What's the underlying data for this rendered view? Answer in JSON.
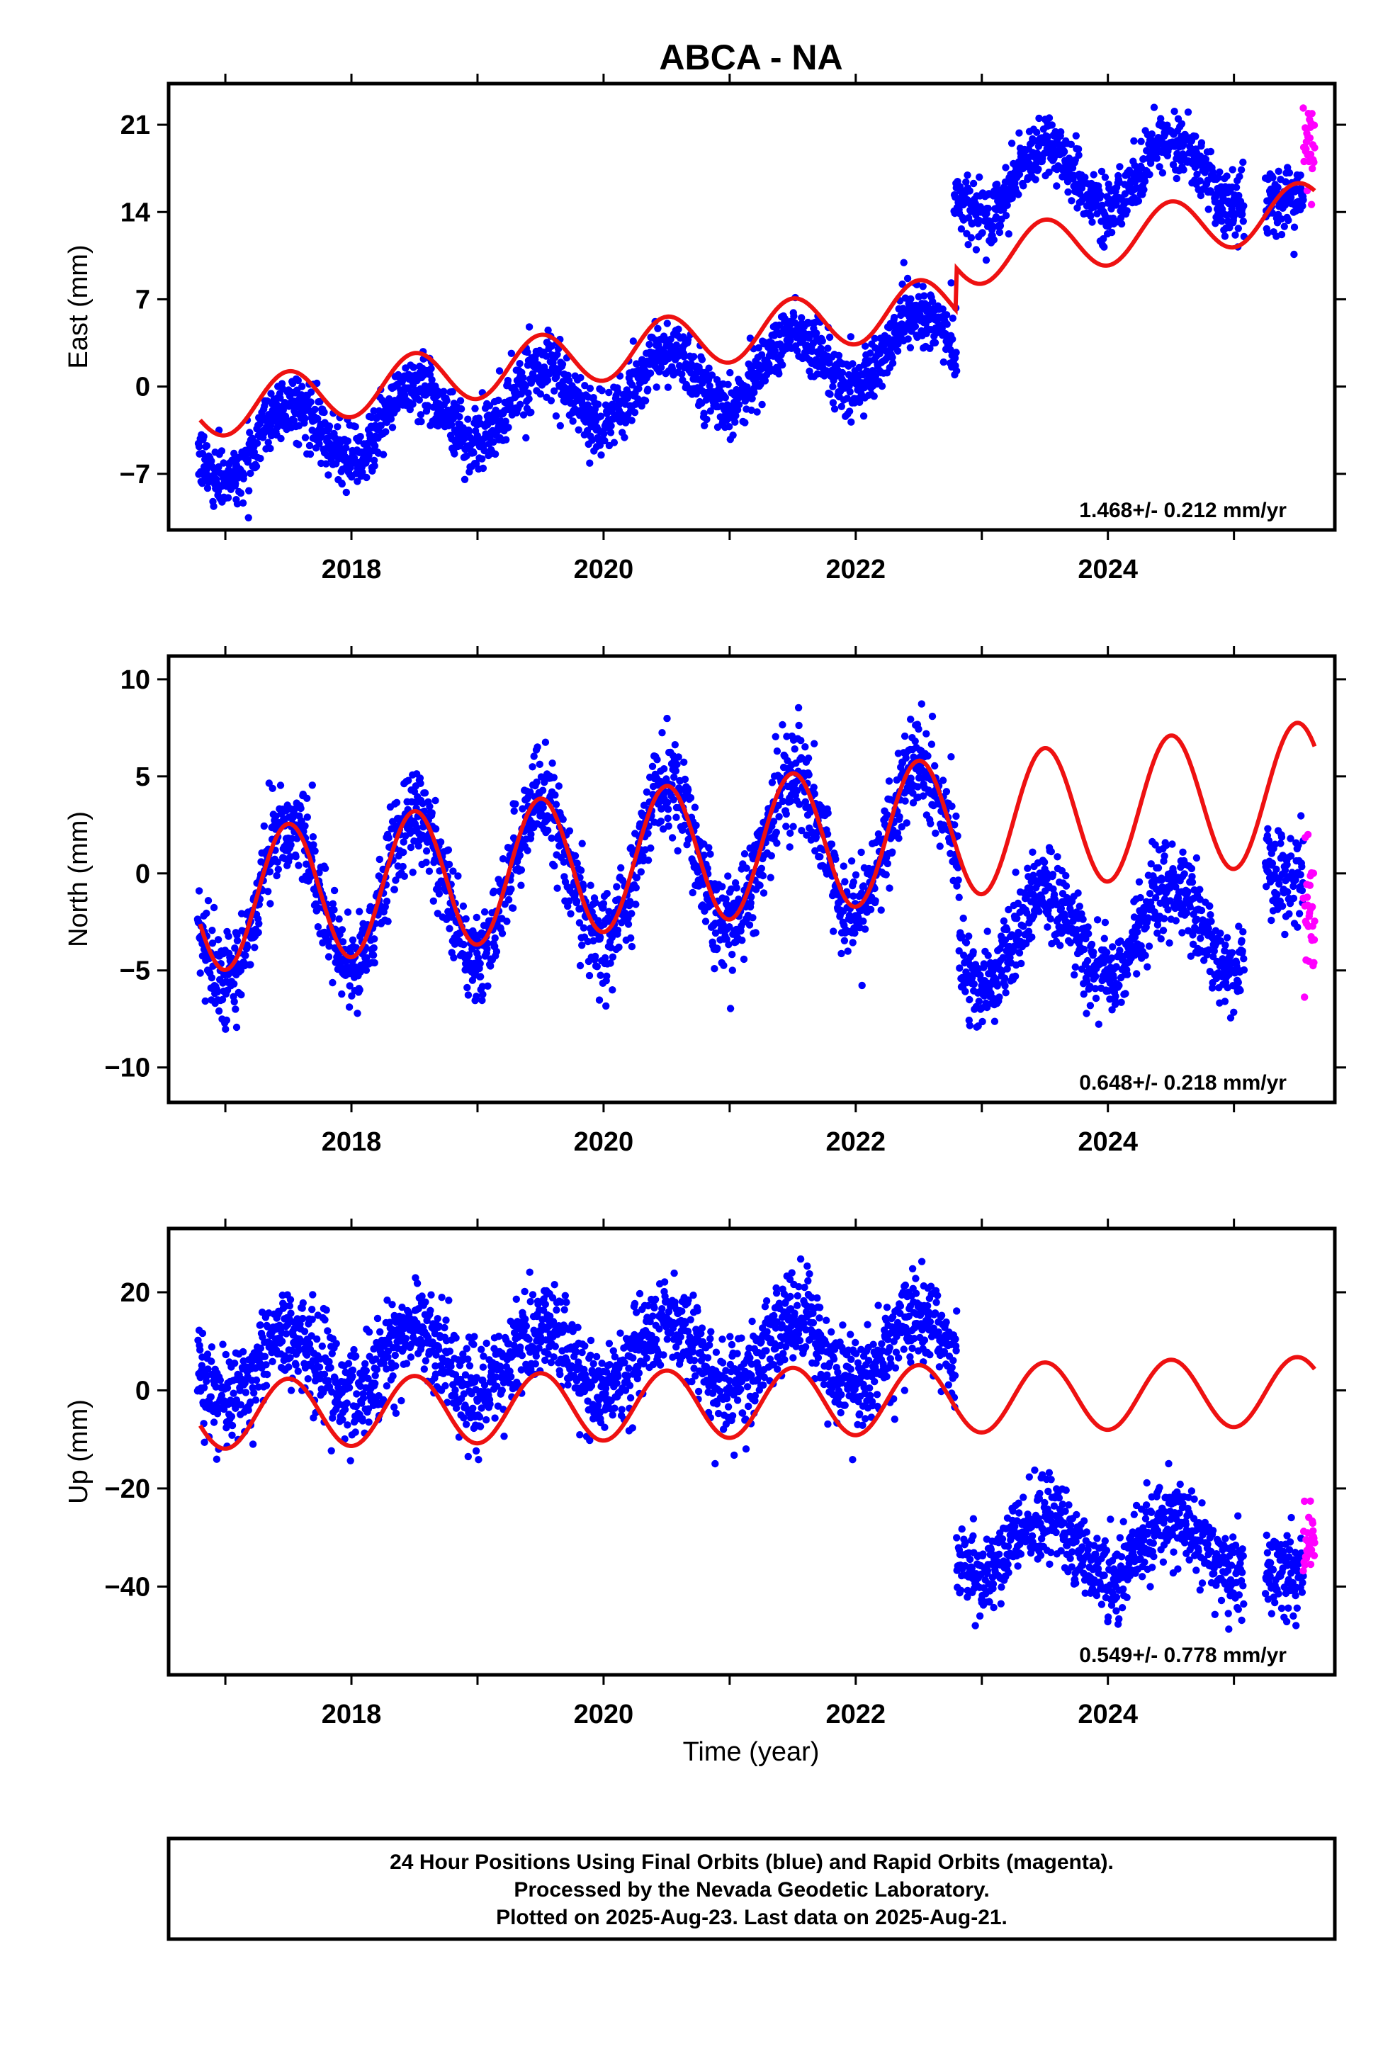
{
  "figure": {
    "title": "ABCA - NA",
    "xlabel": "Time (year)",
    "footer_lines": [
      "24 Hour Positions Using Final Orbits (blue) and Rapid Orbits (magenta).",
      "Processed by the Nevada Geodetic Laboratory.",
      "Plotted on 2025-Aug-23. Last data on 2025-Aug-21."
    ],
    "colors": {
      "final_orbits": "#0000ff",
      "rapid_orbits": "#ff00ff",
      "model": "#ee1111",
      "frame": "#000000"
    }
  },
  "chart_data": [
    {
      "type": "scatter",
      "panel": "east",
      "ylabel": "East (mm)",
      "rate_text": "1.468+/- 0.212 mm/yr",
      "xlim": [
        2016.55,
        2025.8
      ],
      "ylim": [
        -11.5,
        24.3
      ],
      "xticks": [
        2018,
        2020,
        2022,
        2024
      ],
      "yticks": [
        -7,
        0,
        7,
        14,
        21
      ],
      "series": [
        {
          "name": "Final Orbits",
          "color": "blue",
          "segments": [
            {
              "x0": 2016.78,
              "x1": 2022.8,
              "y_offset": -5.0,
              "y_slope": 1.45,
              "seasonal_amp": 2.6,
              "seasonal_phase_frac": 0.0,
              "noise": 1.25
            },
            {
              "x0": 2022.78,
              "x1": 2025.08,
              "y_offset": 16.3,
              "y_slope": 0.5,
              "seasonal_amp": 2.8,
              "seasonal_phase_frac": 0.0,
              "noise": 1.2
            },
            {
              "x0": 2025.25,
              "x1": 2025.55,
              "y_offset": 15.0,
              "y_slope": 0.0,
              "seasonal_amp": 0.0,
              "seasonal_phase_frac": 0.0,
              "noise": 1.4
            }
          ]
        },
        {
          "name": "Rapid Orbits",
          "color": "magenta",
          "segments": [
            {
              "x0": 2025.55,
              "x1": 2025.64,
              "y_offset": 19.5,
              "y_slope": 0.0,
              "seasonal_amp": 0.0,
              "seasonal_phase_frac": 0.0,
              "noise": 2.2
            }
          ]
        }
      ],
      "model": {
        "x0": 2016.8,
        "x1": 2025.64,
        "y_offset": -2.0,
        "y_slope": 1.46,
        "seasonal_amp": 2.2,
        "seasonal_phase_frac": 0.0,
        "steps": [
          {
            "x": 2022.8,
            "dy": 3.4
          }
        ]
      }
    },
    {
      "type": "scatter",
      "panel": "north",
      "ylabel": "North (mm)",
      "rate_text": "0.648+/- 0.218 mm/yr",
      "xlim": [
        2016.55,
        2025.8
      ],
      "ylim": [
        -11.8,
        11.2
      ],
      "xticks": [
        2018,
        2020,
        2022,
        2024
      ],
      "yticks": [
        -10,
        -5,
        0,
        5,
        10
      ],
      "series": [
        {
          "name": "Final Orbits",
          "color": "blue",
          "segments": [
            {
              "x0": 2016.78,
              "x1": 2022.82,
              "y_offset": -1.8,
              "y_slope": 0.65,
              "seasonal_amp": 3.8,
              "seasonal_phase_frac": 0.0,
              "noise": 1.2
            },
            {
              "x0": 2022.82,
              "x1": 2025.08,
              "y_offset": -3.6,
              "y_slope": 0.4,
              "seasonal_amp": 2.3,
              "seasonal_phase_frac": 0.0,
              "noise": 1.1
            },
            {
              "x0": 2025.25,
              "x1": 2025.55,
              "y_offset": -0.2,
              "y_slope": 0.0,
              "seasonal_amp": 0.0,
              "seasonal_phase_frac": 0.0,
              "noise": 1.3
            }
          ]
        },
        {
          "name": "Rapid Orbits",
          "color": "magenta",
          "segments": [
            {
              "x0": 2025.55,
              "x1": 2025.64,
              "y_offset": -1.5,
              "y_slope": 0.0,
              "seasonal_amp": 0.0,
              "seasonal_phase_frac": 0.0,
              "noise": 2.5
            }
          ]
        }
      ],
      "model": {
        "x0": 2016.8,
        "x1": 2025.64,
        "y_offset": -1.5,
        "y_slope": 0.65,
        "seasonal_amp": 3.6,
        "seasonal_phase_frac": 0.0,
        "steps": []
      }
    },
    {
      "type": "scatter",
      "panel": "up",
      "ylabel": "Up (mm)",
      "rate_text": "0.549+/- 0.778 mm/yr",
      "xlim": [
        2016.55,
        2025.8
      ],
      "ylim": [
        -58,
        33
      ],
      "xticks": [
        2018,
        2020,
        2022,
        2024
      ],
      "yticks": [
        -40,
        -20,
        0,
        20
      ],
      "series": [
        {
          "name": "Final Orbits",
          "color": "blue",
          "segments": [
            {
              "x0": 2016.78,
              "x1": 2022.8,
              "y_offset": 5.0,
              "y_slope": 0.55,
              "seasonal_amp": 7.0,
              "seasonal_phase_frac": 0.0,
              "noise": 4.8
            },
            {
              "x0": 2022.8,
              "x1": 2025.08,
              "y_offset": -32.0,
              "y_slope": 0.3,
              "seasonal_amp": 6.0,
              "seasonal_phase_frac": 0.0,
              "noise": 4.5
            },
            {
              "x0": 2025.25,
              "x1": 2025.55,
              "y_offset": -37.0,
              "y_slope": 0.0,
              "seasonal_amp": 0.0,
              "seasonal_phase_frac": 0.0,
              "noise": 4.2
            }
          ]
        },
        {
          "name": "Rapid Orbits",
          "color": "magenta",
          "segments": [
            {
              "x0": 2025.55,
              "x1": 2025.64,
              "y_offset": -30.0,
              "y_slope": 0.0,
              "seasonal_amp": 0.0,
              "seasonal_phase_frac": 0.0,
              "noise": 4.5
            }
          ]
        }
      ],
      "model": {
        "x0": 2016.8,
        "x1": 2025.64,
        "y_offset": -5.0,
        "y_slope": 0.55,
        "seasonal_amp": 7.0,
        "seasonal_phase_frac": 0.0,
        "steps": []
      }
    }
  ]
}
